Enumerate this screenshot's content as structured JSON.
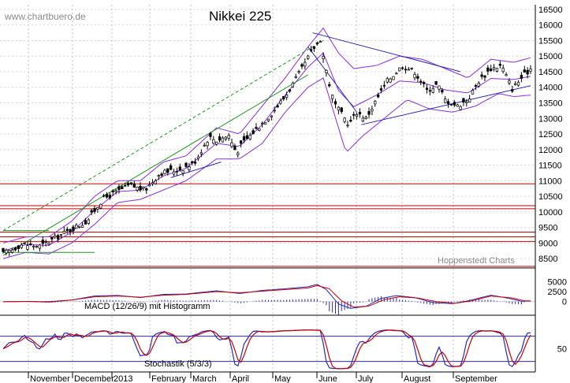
{
  "watermark": "www.chartbuero.de",
  "credit": "Hoppenstedt Charts",
  "colors": {
    "background": "#ffffff",
    "candles": "#000000",
    "bollinger": "#8a2be2",
    "support_lines": "#cc0000",
    "trend_green": "#1a9a1a",
    "trend_blue": "#2a2ab8",
    "macd": "#2a2ab8",
    "signal": "#cc0000",
    "histogram": "#2a2ab8"
  },
  "chart_data": [
    {
      "type": "candlestick",
      "title": "Nikkei 225",
      "x_ticks": [
        "November",
        "December",
        "2013",
        "February",
        "March",
        "April",
        "May",
        "June",
        "July",
        "August",
        "September"
      ],
      "y_ticks": [
        8500,
        9000,
        9500,
        10000,
        10500,
        11000,
        11500,
        12000,
        12500,
        13000,
        13500,
        14000,
        14500,
        15000,
        15500,
        16000,
        16500
      ],
      "y_range": [
        8200,
        16650
      ],
      "horizontal_levels": [
        8250,
        9050,
        9200,
        9350,
        10100,
        10200,
        10900
      ],
      "close_path": [
        [
          0,
          8650
        ],
        [
          12,
          8950
        ],
        [
          25,
          8900
        ],
        [
          30,
          9050
        ],
        [
          43,
          9400
        ],
        [
          55,
          9700
        ],
        [
          65,
          10400
        ],
        [
          75,
          10650
        ],
        [
          83,
          10850
        ],
        [
          93,
          10700
        ],
        [
          103,
          11250
        ],
        [
          115,
          11350
        ],
        [
          125,
          11550
        ],
        [
          135,
          12400
        ],
        [
          140,
          12300
        ],
        [
          148,
          12450
        ],
        [
          153,
          11900
        ],
        [
          157,
          12200
        ],
        [
          165,
          12600
        ],
        [
          175,
          13100
        ],
        [
          185,
          13700
        ],
        [
          195,
          14500
        ],
        [
          203,
          15200
        ],
        [
          208,
          15550
        ],
        [
          210,
          15000
        ],
        [
          213,
          14300
        ],
        [
          217,
          13500
        ],
        [
          221,
          13200
        ],
        [
          227,
          12800
        ],
        [
          232,
          13200
        ],
        [
          238,
          13000
        ],
        [
          245,
          13600
        ],
        [
          252,
          14200
        ],
        [
          262,
          14700
        ],
        [
          270,
          14500
        ],
        [
          278,
          13900
        ],
        [
          285,
          14100
        ],
        [
          290,
          13600
        ],
        [
          298,
          13400
        ],
        [
          305,
          13600
        ],
        [
          312,
          14200
        ],
        [
          320,
          14600
        ],
        [
          327,
          14700
        ],
        [
          331,
          14250
        ],
        [
          334,
          13950
        ],
        [
          340,
          14300
        ],
        [
          346,
          14600
        ]
      ],
      "upper_band": [
        [
          0,
          9000
        ],
        [
          15,
          9200
        ],
        [
          30,
          9200
        ],
        [
          45,
          9700
        ],
        [
          60,
          10500
        ],
        [
          75,
          11000
        ],
        [
          90,
          11000
        ],
        [
          105,
          11600
        ],
        [
          120,
          11800
        ],
        [
          140,
          12700
        ],
        [
          155,
          12500
        ],
        [
          170,
          13400
        ],
        [
          185,
          14300
        ],
        [
          200,
          15300
        ],
        [
          210,
          15900
        ],
        [
          220,
          15100
        ],
        [
          230,
          14600
        ],
        [
          245,
          14700
        ],
        [
          260,
          15000
        ],
        [
          275,
          14900
        ],
        [
          290,
          14600
        ],
        [
          305,
          14300
        ],
        [
          320,
          14900
        ],
        [
          335,
          14800
        ],
        [
          346,
          14950
        ]
      ],
      "lower_band": [
        [
          0,
          8500
        ],
        [
          15,
          8700
        ],
        [
          30,
          8650
        ],
        [
          45,
          9000
        ],
        [
          60,
          9600
        ],
        [
          75,
          10300
        ],
        [
          90,
          10400
        ],
        [
          105,
          10700
        ],
        [
          120,
          11000
        ],
        [
          140,
          11700
        ],
        [
          155,
          11700
        ],
        [
          170,
          12200
        ],
        [
          185,
          13200
        ],
        [
          200,
          14000
        ],
        [
          210,
          14300
        ],
        [
          220,
          12700
        ],
        [
          225,
          11900
        ],
        [
          235,
          12400
        ],
        [
          250,
          13000
        ],
        [
          265,
          13600
        ],
        [
          280,
          13300
        ],
        [
          295,
          13200
        ],
        [
          310,
          13400
        ],
        [
          325,
          13800
        ],
        [
          335,
          13700
        ],
        [
          346,
          13750
        ]
      ],
      "trend_green": [
        [
          [
            0,
            8600
          ],
          [
            200,
            14400
          ]
        ],
        [
          [
            0,
            9400
          ],
          [
            210,
            15500
          ]
        ],
        [
          [
            0,
            9400
          ],
          [
            30,
            9400
          ]
        ],
        [
          [
            0,
            8700
          ],
          [
            60,
            8700
          ]
        ]
      ],
      "trend_blue": [
        [
          [
            203,
            15750
          ],
          [
            300,
            14500
          ]
        ],
        [
          [
            200,
            15300
          ],
          [
            232,
            13200
          ]
        ],
        [
          [
            235,
            12800
          ],
          [
            346,
            14050
          ]
        ],
        [
          [
            110,
            11100
          ],
          [
            143,
            11600
          ]
        ]
      ]
    },
    {
      "type": "line",
      "title": "MACD (12/26/9) mit Histogramm",
      "y_ticks": [
        0,
        2500,
        5000
      ],
      "y_range": [
        -3400,
        8400
      ],
      "macd": [
        [
          0,
          -30
        ],
        [
          15,
          50
        ],
        [
          30,
          -120
        ],
        [
          45,
          400
        ],
        [
          60,
          1400
        ],
        [
          75,
          1550
        ],
        [
          90,
          1000
        ],
        [
          105,
          1800
        ],
        [
          120,
          1900
        ],
        [
          140,
          2700
        ],
        [
          155,
          2000
        ],
        [
          170,
          2800
        ],
        [
          185,
          3200
        ],
        [
          200,
          3700
        ],
        [
          206,
          4300
        ],
        [
          212,
          3000
        ],
        [
          220,
          -600
        ],
        [
          228,
          -1700
        ],
        [
          238,
          -1200
        ],
        [
          248,
          800
        ],
        [
          258,
          1500
        ],
        [
          270,
          1000
        ],
        [
          282,
          -250
        ],
        [
          295,
          -500
        ],
        [
          305,
          200
        ],
        [
          320,
          1600
        ],
        [
          332,
          800
        ],
        [
          340,
          80
        ],
        [
          346,
          200
        ]
      ],
      "signal": [
        [
          0,
          -40
        ],
        [
          15,
          30
        ],
        [
          30,
          0
        ],
        [
          45,
          400
        ],
        [
          60,
          1200
        ],
        [
          75,
          1400
        ],
        [
          90,
          1100
        ],
        [
          105,
          1600
        ],
        [
          120,
          1800
        ],
        [
          140,
          2500
        ],
        [
          155,
          2200
        ],
        [
          170,
          2600
        ],
        [
          185,
          3000
        ],
        [
          200,
          3400
        ],
        [
          206,
          4000
        ],
        [
          214,
          3200
        ],
        [
          222,
          200
        ],
        [
          230,
          -1400
        ],
        [
          240,
          -1100
        ],
        [
          250,
          500
        ],
        [
          260,
          1200
        ],
        [
          272,
          900
        ],
        [
          284,
          0
        ],
        [
          297,
          -400
        ],
        [
          307,
          150
        ],
        [
          320,
          1400
        ],
        [
          334,
          900
        ],
        [
          342,
          200
        ],
        [
          346,
          150
        ]
      ]
    },
    {
      "type": "line",
      "title": "Stochastik (5/3/3)",
      "y_ticks": [
        50
      ],
      "y_range": [
        -5,
        130
      ],
      "levels": [
        20,
        80
      ],
      "period": 14
    }
  ]
}
